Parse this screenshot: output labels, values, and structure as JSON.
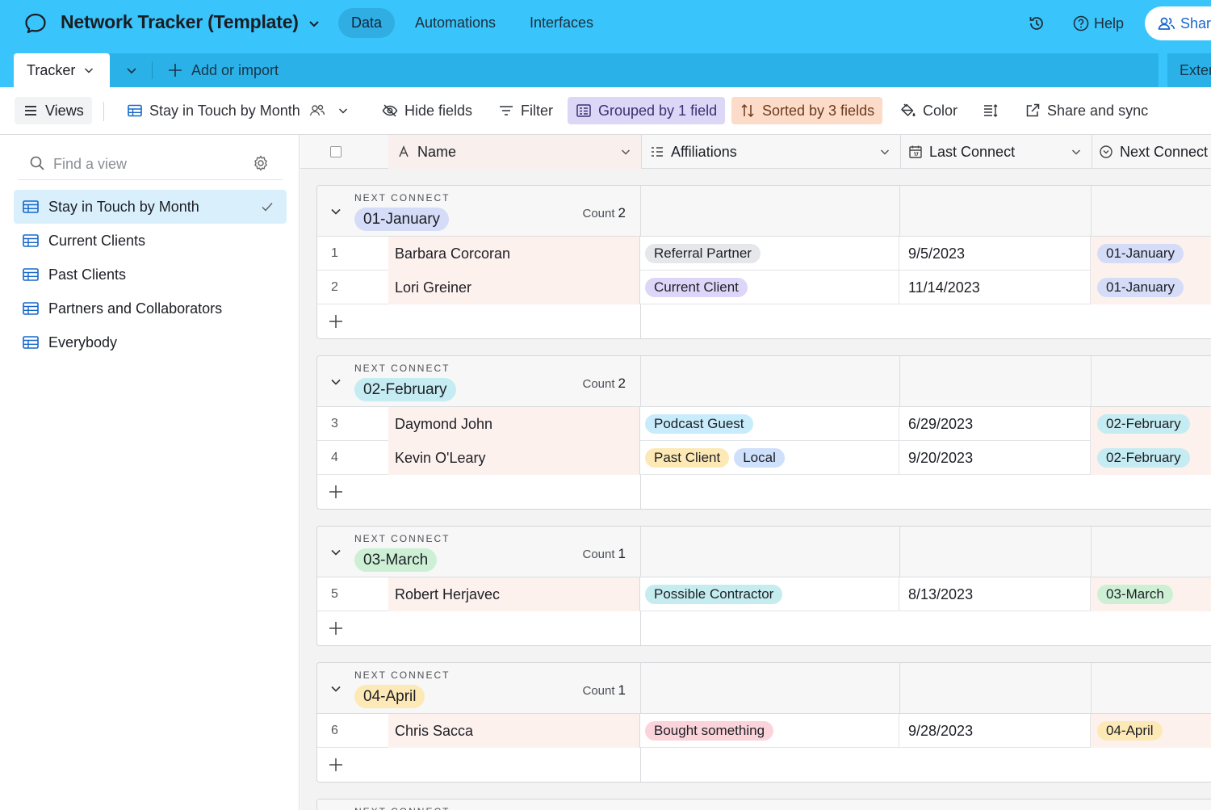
{
  "app": {
    "title": "Network Tracker (Template)",
    "nav": [
      "Data",
      "Automations",
      "Interfaces"
    ],
    "help_label": "Help",
    "share_label": "Share"
  },
  "tabs": {
    "active": "Tracker",
    "add_label": "Add or import",
    "extension_label": "Exter"
  },
  "toolbar": {
    "views_label": "Views",
    "current_view": "Stay in Touch by Month",
    "hide_fields": "Hide fields",
    "filter": "Filter",
    "grouped": "Grouped by 1 field",
    "sorted": "Sorted by 3 fields",
    "color": "Color",
    "share_sync": "Share and sync"
  },
  "sidebar": {
    "search_placeholder": "Find a view",
    "views": [
      "Stay in Touch by Month",
      "Current Clients",
      "Past Clients",
      "Partners and Collaborators",
      "Everybody"
    ]
  },
  "columns": {
    "name": "Name",
    "affiliations": "Affiliations",
    "last_connect": "Last Connect",
    "next_connect": "Next Connect"
  },
  "group_label": "NEXT CONNECT",
  "count_label": "Count",
  "colors": {
    "topbar": "#39c5fb",
    "january": "#d4dcf7",
    "february": "#c5ecf2",
    "march": "#cdf0d5",
    "april": "#fde9b6"
  },
  "groups": [
    {
      "value": "01-January",
      "count": "2",
      "rows": [
        {
          "num": "1",
          "name": "Barbara Corcoran",
          "affiliations": [
            "Referral Partner"
          ],
          "last": "9/5/2023",
          "next": "01-January"
        },
        {
          "num": "2",
          "name": "Lori Greiner",
          "affiliations": [
            "Current Client"
          ],
          "last": "11/14/2023",
          "next": "01-January"
        }
      ]
    },
    {
      "value": "02-February",
      "count": "2",
      "rows": [
        {
          "num": "3",
          "name": "Daymond John",
          "affiliations": [
            "Podcast Guest"
          ],
          "last": "6/29/2023",
          "next": "02-February"
        },
        {
          "num": "4",
          "name": "Kevin O'Leary",
          "affiliations": [
            "Past Client",
            "Local"
          ],
          "last": "9/20/2023",
          "next": "02-February"
        }
      ]
    },
    {
      "value": "03-March",
      "count": "1",
      "rows": [
        {
          "num": "5",
          "name": "Robert Herjavec",
          "affiliations": [
            "Possible Contractor"
          ],
          "last": "8/13/2023",
          "next": "03-March"
        }
      ]
    },
    {
      "value": "04-April",
      "count": "1",
      "rows": [
        {
          "num": "6",
          "name": "Chris Sacca",
          "affiliations": [
            "Bought something"
          ],
          "last": "9/28/2023",
          "next": "04-April"
        }
      ]
    }
  ]
}
